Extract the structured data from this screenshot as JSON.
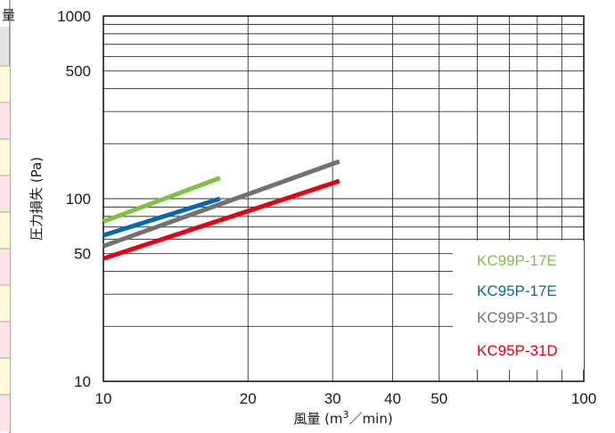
{
  "chart_data": {
    "type": "line",
    "xlabel": "風量 (m3／min)",
    "ylabel": "圧力損失 (Pa)",
    "x_scale": "log",
    "y_scale": "log",
    "xlim": [
      10,
      100
    ],
    "ylim": [
      10,
      1000
    ],
    "x_ticks": [
      10,
      20,
      30,
      40,
      50,
      100
    ],
    "y_ticks": [
      10,
      50,
      100,
      500,
      1000
    ],
    "grid": true,
    "legend_position": "bottom-right",
    "series": [
      {
        "name": "KC99P-17E",
        "color": "#7dc242",
        "x": [
          10,
          17.5
        ],
        "y": [
          75,
          130
        ]
      },
      {
        "name": "KC95P-17E",
        "color": "#0068b7",
        "x": [
          10,
          17.5
        ],
        "y": [
          63,
          100
        ]
      },
      {
        "name": "KC99P-31D",
        "color": "#727171",
        "x": [
          10,
          31
        ],
        "y": [
          55,
          160
        ]
      },
      {
        "name": "KC95P-31D",
        "color": "#e60012",
        "x": [
          10,
          31
        ],
        "y": [
          47,
          125
        ]
      }
    ]
  },
  "left_table": {
    "header_fragment": "量",
    "row_colors": [
      "#fdf8d8",
      "#fbe3e8",
      "#fdf8d8",
      "#fbe3e8",
      "#fdf8d8",
      "#fbe3e8",
      "#fdf8d8",
      "#fbe3e8",
      "#fdf8d8",
      "#fbe3e8"
    ]
  }
}
